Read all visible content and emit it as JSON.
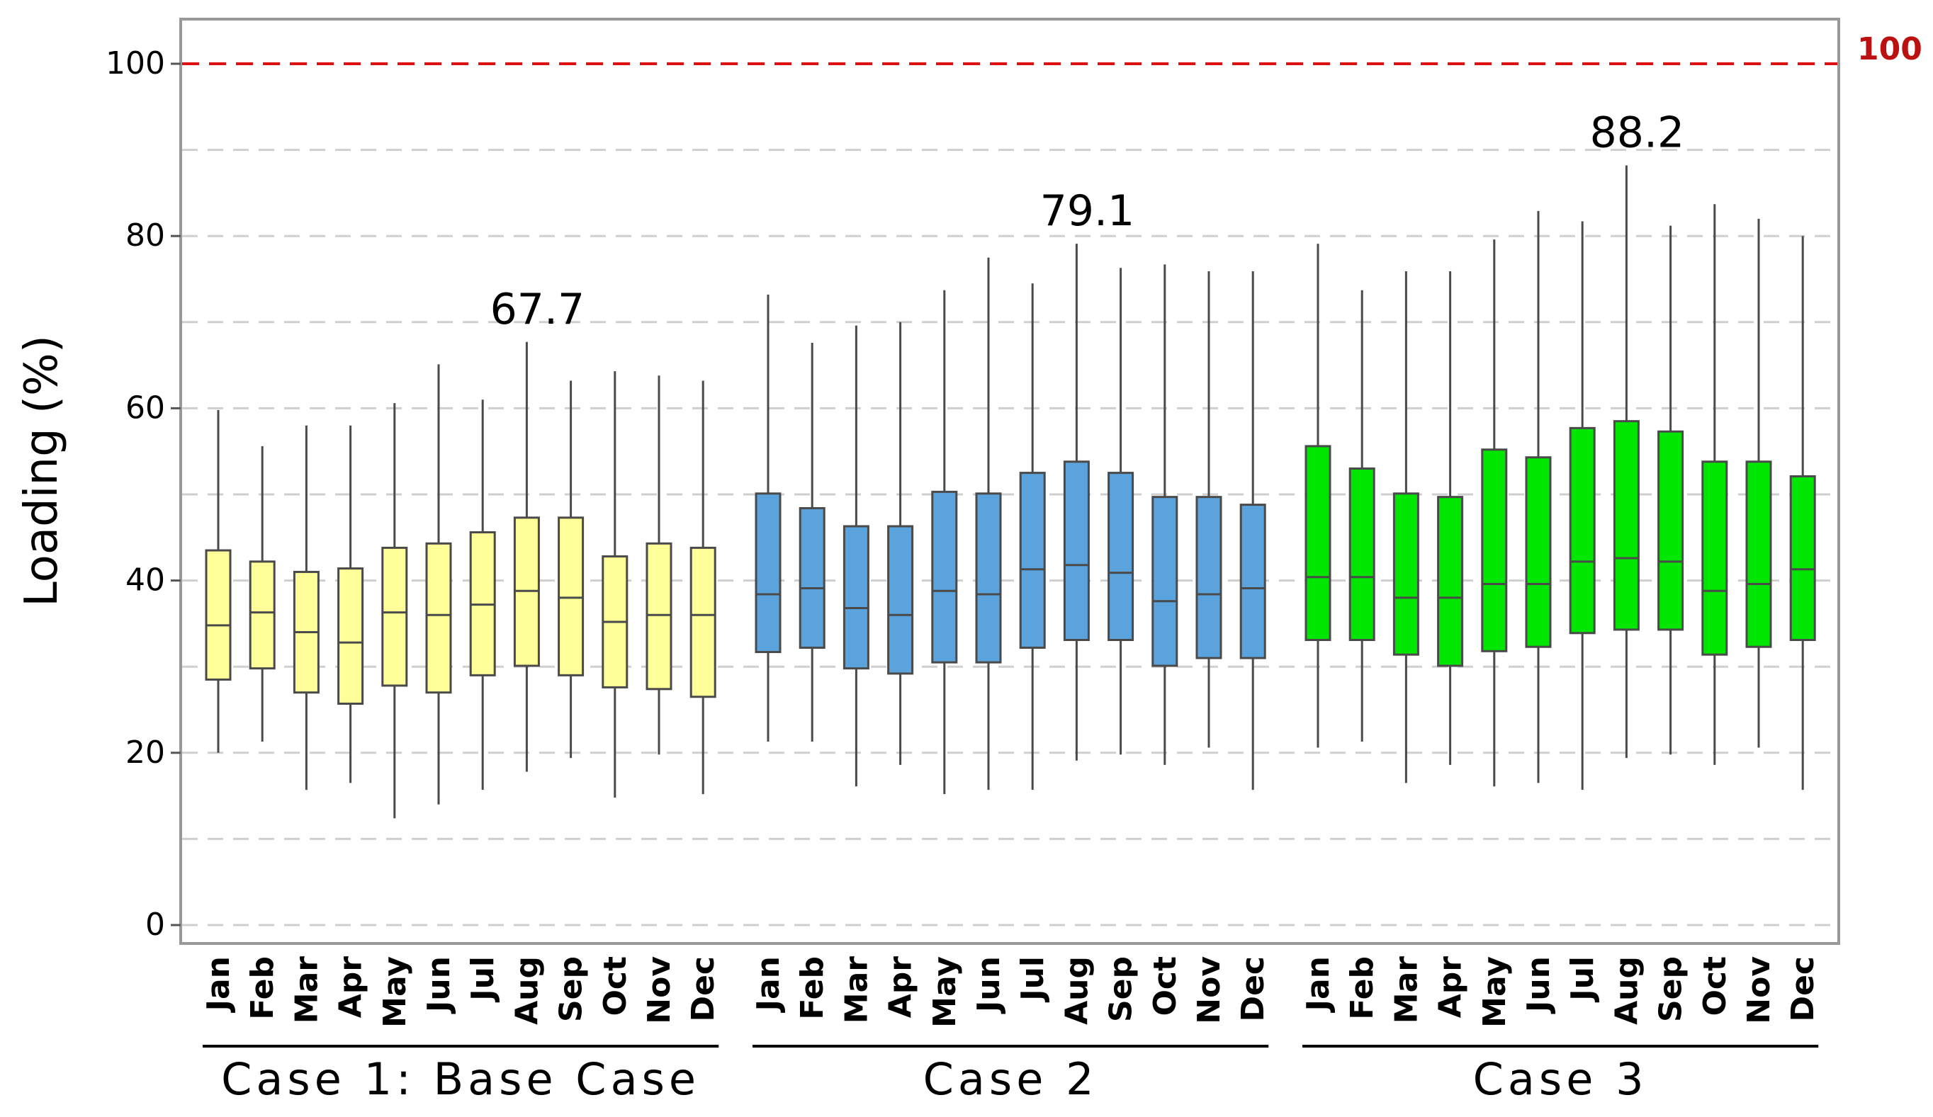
{
  "chart_data": {
    "type": "boxplot",
    "title": "",
    "xlabel": "",
    "ylabel": "Loading (%)",
    "ylim": [
      0,
      100
    ],
    "yticks": [
      0,
      20,
      40,
      60,
      80,
      100
    ],
    "minor_gridlines": [
      10,
      30,
      50,
      70,
      90
    ],
    "grid": "horizontal dashed",
    "reference_line": {
      "value": 100,
      "label": "100",
      "color": "#dd1111"
    },
    "categories": [
      "Jan",
      "Feb",
      "Mar",
      "Apr",
      "May",
      "Jun",
      "Jul",
      "Aug",
      "Sep",
      "Oct",
      "Nov",
      "Dec"
    ],
    "groups": [
      {
        "name": "Case 1: Base Case",
        "color": "#ffff99",
        "annotation": {
          "text": "67.7",
          "month": "Aug"
        },
        "boxes": [
          {
            "month": "Jan",
            "min": 20.0,
            "q1": 28.5,
            "median": 34.8,
            "q3": 43.5,
            "max": 59.8
          },
          {
            "month": "Feb",
            "min": 21.3,
            "q1": 29.8,
            "median": 36.3,
            "q3": 42.2,
            "max": 55.6
          },
          {
            "month": "Mar",
            "min": 15.7,
            "q1": 27.0,
            "median": 34.0,
            "q3": 41.0,
            "max": 58.0
          },
          {
            "month": "Apr",
            "min": 16.5,
            "q1": 25.7,
            "median": 32.8,
            "q3": 41.4,
            "max": 58.0
          },
          {
            "month": "May",
            "min": 12.4,
            "q1": 27.8,
            "median": 36.3,
            "q3": 43.8,
            "max": 60.6
          },
          {
            "month": "Jun",
            "min": 14.0,
            "q1": 27.0,
            "median": 36.0,
            "q3": 44.3,
            "max": 65.1
          },
          {
            "month": "Jul",
            "min": 15.7,
            "q1": 29.0,
            "median": 37.2,
            "q3": 45.6,
            "max": 61.0
          },
          {
            "month": "Aug",
            "min": 17.8,
            "q1": 30.1,
            "median": 38.8,
            "q3": 47.3,
            "max": 67.7
          },
          {
            "month": "Sep",
            "min": 19.4,
            "q1": 29.0,
            "median": 38.0,
            "q3": 47.3,
            "max": 63.2
          },
          {
            "month": "Oct",
            "min": 14.8,
            "q1": 27.6,
            "median": 35.2,
            "q3": 42.8,
            "max": 64.3
          },
          {
            "month": "Nov",
            "min": 19.8,
            "q1": 27.4,
            "median": 36.0,
            "q3": 44.3,
            "max": 63.8
          },
          {
            "month": "Dec",
            "min": 15.2,
            "q1": 26.5,
            "median": 36.0,
            "q3": 43.8,
            "max": 63.2
          }
        ]
      },
      {
        "name": "Case 2",
        "color": "#5ba3dc",
        "annotation": {
          "text": "79.1",
          "month": "Aug"
        },
        "boxes": [
          {
            "month": "Jan",
            "min": 21.3,
            "q1": 31.7,
            "median": 38.4,
            "q3": 50.1,
            "max": 73.2
          },
          {
            "month": "Feb",
            "min": 21.3,
            "q1": 32.2,
            "median": 39.1,
            "q3": 48.4,
            "max": 67.6
          },
          {
            "month": "Mar",
            "min": 16.1,
            "q1": 29.8,
            "median": 36.8,
            "q3": 46.3,
            "max": 69.6
          },
          {
            "month": "Apr",
            "min": 18.6,
            "q1": 29.2,
            "median": 36.0,
            "q3": 46.3,
            "max": 70.0
          },
          {
            "month": "May",
            "min": 15.2,
            "q1": 30.5,
            "median": 38.8,
            "q3": 50.3,
            "max": 73.7
          },
          {
            "month": "Jun",
            "min": 15.7,
            "q1": 30.5,
            "median": 38.4,
            "q3": 50.1,
            "max": 77.5
          },
          {
            "month": "Jul",
            "min": 15.7,
            "q1": 32.2,
            "median": 41.3,
            "q3": 52.5,
            "max": 74.5
          },
          {
            "month": "Aug",
            "min": 19.1,
            "q1": 33.1,
            "median": 41.8,
            "q3": 53.8,
            "max": 79.1
          },
          {
            "month": "Sep",
            "min": 19.8,
            "q1": 33.1,
            "median": 40.9,
            "q3": 52.5,
            "max": 76.3
          },
          {
            "month": "Oct",
            "min": 18.6,
            "q1": 30.1,
            "median": 37.6,
            "q3": 49.7,
            "max": 76.7
          },
          {
            "month": "Nov",
            "min": 20.6,
            "q1": 31.0,
            "median": 38.4,
            "q3": 49.7,
            "max": 75.9
          },
          {
            "month": "Dec",
            "min": 15.7,
            "q1": 31.0,
            "median": 39.1,
            "q3": 48.8,
            "max": 75.9
          }
        ]
      },
      {
        "name": "Case 3",
        "color": "#00e600",
        "annotation": {
          "text": "88.2",
          "month": "Aug"
        },
        "boxes": [
          {
            "month": "Jan",
            "min": 20.6,
            "q1": 33.1,
            "median": 40.4,
            "q3": 55.6,
            "max": 79.1
          },
          {
            "month": "Feb",
            "min": 21.3,
            "q1": 33.1,
            "median": 40.4,
            "q3": 53.0,
            "max": 73.7
          },
          {
            "month": "Mar",
            "min": 16.5,
            "q1": 31.4,
            "median": 38.0,
            "q3": 50.1,
            "max": 75.9
          },
          {
            "month": "Apr",
            "min": 18.6,
            "q1": 30.1,
            "median": 38.0,
            "q3": 49.7,
            "max": 75.9
          },
          {
            "month": "May",
            "min": 16.1,
            "q1": 31.8,
            "median": 39.6,
            "q3": 55.2,
            "max": 79.6
          },
          {
            "month": "Jun",
            "min": 16.5,
            "q1": 32.3,
            "median": 39.6,
            "q3": 54.3,
            "max": 82.9
          },
          {
            "month": "Jul",
            "min": 15.7,
            "q1": 33.9,
            "median": 42.2,
            "q3": 57.7,
            "max": 81.7
          },
          {
            "month": "Aug",
            "min": 19.4,
            "q1": 34.3,
            "median": 42.6,
            "q3": 58.5,
            "max": 88.2
          },
          {
            "month": "Sep",
            "min": 19.8,
            "q1": 34.3,
            "median": 42.2,
            "q3": 57.3,
            "max": 81.2
          },
          {
            "month": "Oct",
            "min": 18.6,
            "q1": 31.4,
            "median": 38.8,
            "q3": 53.8,
            "max": 83.7
          },
          {
            "month": "Nov",
            "min": 20.6,
            "q1": 32.3,
            "median": 39.6,
            "q3": 53.8,
            "max": 82.0
          },
          {
            "month": "Dec",
            "min": 15.7,
            "q1": 33.1,
            "median": 41.3,
            "q3": 52.1,
            "max": 80.0
          }
        ]
      }
    ]
  }
}
